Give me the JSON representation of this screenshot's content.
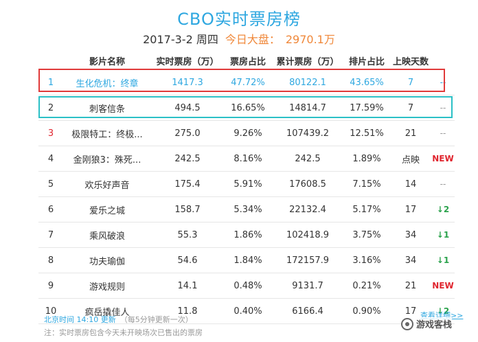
{
  "title": "CBO实时票房榜",
  "subtitle": {
    "date": "2017-3-2 周四",
    "market_label": "今日大盘：",
    "market_value": "2970.1万"
  },
  "columns": [
    "影片名称",
    "实时票房（万）",
    "票房占比",
    "累计票房（万）",
    "排片占比",
    "上映天数"
  ],
  "rows": [
    {
      "rank": "1",
      "name": "生化危机：终章",
      "realtime": "1417.3",
      "share": "47.72%",
      "total": "80122.1",
      "schedule": "43.65%",
      "days": "7",
      "trend": "--",
      "trend_type": "dash"
    },
    {
      "rank": "2",
      "name": "刺客信条",
      "realtime": "494.5",
      "share": "16.65%",
      "total": "14814.7",
      "schedule": "17.59%",
      "days": "7",
      "trend": "--",
      "trend_type": "dash"
    },
    {
      "rank": "3",
      "name": "极限特工：终极...",
      "realtime": "275.0",
      "share": "9.26%",
      "total": "107439.2",
      "schedule": "12.51%",
      "days": "21",
      "trend": "--",
      "trend_type": "dash"
    },
    {
      "rank": "4",
      "name": "金刚狼3：殊死...",
      "realtime": "242.5",
      "share": "8.16%",
      "total": "242.5",
      "schedule": "1.89%",
      "days": "点映",
      "trend": "NEW",
      "trend_type": "new"
    },
    {
      "rank": "5",
      "name": "欢乐好声音",
      "realtime": "175.4",
      "share": "5.91%",
      "total": "17608.5",
      "schedule": "7.15%",
      "days": "14",
      "trend": "--",
      "trend_type": "dash"
    },
    {
      "rank": "6",
      "name": "爱乐之城",
      "realtime": "158.7",
      "share": "5.34%",
      "total": "22132.4",
      "schedule": "5.17%",
      "days": "17",
      "trend": "↓2",
      "trend_type": "down"
    },
    {
      "rank": "7",
      "name": "乘风破浪",
      "realtime": "55.3",
      "share": "1.86%",
      "total": "102418.9",
      "schedule": "3.75%",
      "days": "34",
      "trend": "↓1",
      "trend_type": "down"
    },
    {
      "rank": "8",
      "name": "功夫瑜伽",
      "realtime": "54.6",
      "share": "1.84%",
      "total": "172157.9",
      "schedule": "3.16%",
      "days": "34",
      "trend": "↓1",
      "trend_type": "down"
    },
    {
      "rank": "9",
      "name": "游戏规则",
      "realtime": "14.1",
      "share": "0.48%",
      "total": "9131.7",
      "schedule": "0.21%",
      "days": "21",
      "trend": "NEW",
      "trend_type": "new"
    },
    {
      "rank": "10",
      "name": "疯岳撬佳人",
      "realtime": "11.8",
      "share": "0.40%",
      "total": "6166.4",
      "schedule": "0.90%",
      "days": "17",
      "trend": "↓2",
      "trend_type": "down"
    }
  ],
  "footer": {
    "update_time": "北京时间 14:10 更新",
    "update_note": "（每5分钟更新一次）",
    "note": "注：实时票房包含今天未开映场次已售出的票房",
    "more_link": "查看详细>>"
  },
  "watermark": "游戏客栈"
}
